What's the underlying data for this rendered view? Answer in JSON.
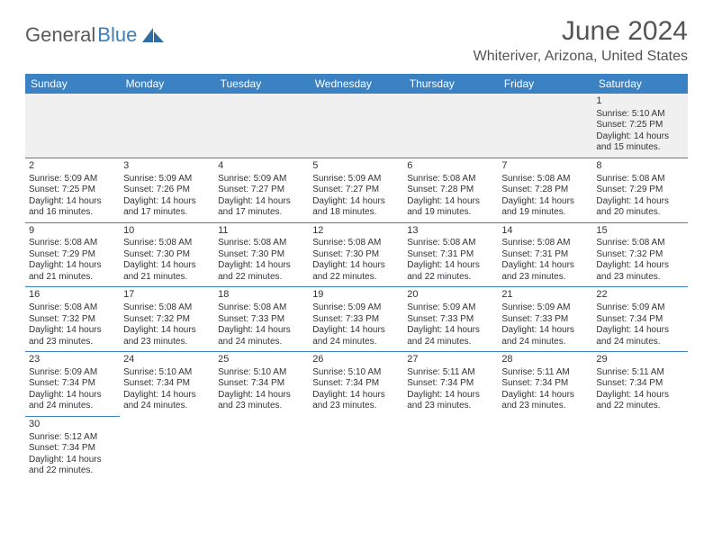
{
  "logo": {
    "part1": "General",
    "part2": "Blue"
  },
  "header": {
    "title": "June 2024",
    "location": "Whiteriver, Arizona, United States"
  },
  "style": {
    "header_bg": "#3b82c4",
    "header_text": "#ffffff",
    "cell_border": "#3b82c4",
    "blank_bg": "#f0f0f0",
    "text_color": "#333333",
    "logo_gray": "#5a5a5a",
    "logo_blue": "#3b7fb8"
  },
  "daynames": [
    "Sunday",
    "Monday",
    "Tuesday",
    "Wednesday",
    "Thursday",
    "Friday",
    "Saturday"
  ],
  "weeks": [
    [
      {
        "blank": true
      },
      {
        "blank": true
      },
      {
        "blank": true
      },
      {
        "blank": true
      },
      {
        "blank": true
      },
      {
        "blank": true
      },
      {
        "day": 1,
        "sunrise": "5:10 AM",
        "sunset": "7:25 PM",
        "dayl1": "Daylight: 14 hours",
        "dayl2": "and 15 minutes."
      }
    ],
    [
      {
        "day": 2,
        "sunrise": "5:09 AM",
        "sunset": "7:25 PM",
        "dayl1": "Daylight: 14 hours",
        "dayl2": "and 16 minutes."
      },
      {
        "day": 3,
        "sunrise": "5:09 AM",
        "sunset": "7:26 PM",
        "dayl1": "Daylight: 14 hours",
        "dayl2": "and 17 minutes."
      },
      {
        "day": 4,
        "sunrise": "5:09 AM",
        "sunset": "7:27 PM",
        "dayl1": "Daylight: 14 hours",
        "dayl2": "and 17 minutes."
      },
      {
        "day": 5,
        "sunrise": "5:09 AM",
        "sunset": "7:27 PM",
        "dayl1": "Daylight: 14 hours",
        "dayl2": "and 18 minutes."
      },
      {
        "day": 6,
        "sunrise": "5:08 AM",
        "sunset": "7:28 PM",
        "dayl1": "Daylight: 14 hours",
        "dayl2": "and 19 minutes."
      },
      {
        "day": 7,
        "sunrise": "5:08 AM",
        "sunset": "7:28 PM",
        "dayl1": "Daylight: 14 hours",
        "dayl2": "and 19 minutes."
      },
      {
        "day": 8,
        "sunrise": "5:08 AM",
        "sunset": "7:29 PM",
        "dayl1": "Daylight: 14 hours",
        "dayl2": "and 20 minutes."
      }
    ],
    [
      {
        "day": 9,
        "sunrise": "5:08 AM",
        "sunset": "7:29 PM",
        "dayl1": "Daylight: 14 hours",
        "dayl2": "and 21 minutes."
      },
      {
        "day": 10,
        "sunrise": "5:08 AM",
        "sunset": "7:30 PM",
        "dayl1": "Daylight: 14 hours",
        "dayl2": "and 21 minutes."
      },
      {
        "day": 11,
        "sunrise": "5:08 AM",
        "sunset": "7:30 PM",
        "dayl1": "Daylight: 14 hours",
        "dayl2": "and 22 minutes."
      },
      {
        "day": 12,
        "sunrise": "5:08 AM",
        "sunset": "7:30 PM",
        "dayl1": "Daylight: 14 hours",
        "dayl2": "and 22 minutes."
      },
      {
        "day": 13,
        "sunrise": "5:08 AM",
        "sunset": "7:31 PM",
        "dayl1": "Daylight: 14 hours",
        "dayl2": "and 22 minutes."
      },
      {
        "day": 14,
        "sunrise": "5:08 AM",
        "sunset": "7:31 PM",
        "dayl1": "Daylight: 14 hours",
        "dayl2": "and 23 minutes."
      },
      {
        "day": 15,
        "sunrise": "5:08 AM",
        "sunset": "7:32 PM",
        "dayl1": "Daylight: 14 hours",
        "dayl2": "and 23 minutes."
      }
    ],
    [
      {
        "day": 16,
        "sunrise": "5:08 AM",
        "sunset": "7:32 PM",
        "dayl1": "Daylight: 14 hours",
        "dayl2": "and 23 minutes."
      },
      {
        "day": 17,
        "sunrise": "5:08 AM",
        "sunset": "7:32 PM",
        "dayl1": "Daylight: 14 hours",
        "dayl2": "and 23 minutes."
      },
      {
        "day": 18,
        "sunrise": "5:08 AM",
        "sunset": "7:33 PM",
        "dayl1": "Daylight: 14 hours",
        "dayl2": "and 24 minutes."
      },
      {
        "day": 19,
        "sunrise": "5:09 AM",
        "sunset": "7:33 PM",
        "dayl1": "Daylight: 14 hours",
        "dayl2": "and 24 minutes."
      },
      {
        "day": 20,
        "sunrise": "5:09 AM",
        "sunset": "7:33 PM",
        "dayl1": "Daylight: 14 hours",
        "dayl2": "and 24 minutes."
      },
      {
        "day": 21,
        "sunrise": "5:09 AM",
        "sunset": "7:33 PM",
        "dayl1": "Daylight: 14 hours",
        "dayl2": "and 24 minutes."
      },
      {
        "day": 22,
        "sunrise": "5:09 AM",
        "sunset": "7:34 PM",
        "dayl1": "Daylight: 14 hours",
        "dayl2": "and 24 minutes."
      }
    ],
    [
      {
        "day": 23,
        "sunrise": "5:09 AM",
        "sunset": "7:34 PM",
        "dayl1": "Daylight: 14 hours",
        "dayl2": "and 24 minutes."
      },
      {
        "day": 24,
        "sunrise": "5:10 AM",
        "sunset": "7:34 PM",
        "dayl1": "Daylight: 14 hours",
        "dayl2": "and 24 minutes."
      },
      {
        "day": 25,
        "sunrise": "5:10 AM",
        "sunset": "7:34 PM",
        "dayl1": "Daylight: 14 hours",
        "dayl2": "and 23 minutes."
      },
      {
        "day": 26,
        "sunrise": "5:10 AM",
        "sunset": "7:34 PM",
        "dayl1": "Daylight: 14 hours",
        "dayl2": "and 23 minutes."
      },
      {
        "day": 27,
        "sunrise": "5:11 AM",
        "sunset": "7:34 PM",
        "dayl1": "Daylight: 14 hours",
        "dayl2": "and 23 minutes."
      },
      {
        "day": 28,
        "sunrise": "5:11 AM",
        "sunset": "7:34 PM",
        "dayl1": "Daylight: 14 hours",
        "dayl2": "and 23 minutes."
      },
      {
        "day": 29,
        "sunrise": "5:11 AM",
        "sunset": "7:34 PM",
        "dayl1": "Daylight: 14 hours",
        "dayl2": "and 22 minutes."
      }
    ],
    [
      {
        "day": 30,
        "sunrise": "5:12 AM",
        "sunset": "7:34 PM",
        "dayl1": "Daylight: 14 hours",
        "dayl2": "and 22 minutes."
      },
      {
        "blank": true
      },
      {
        "blank": true
      },
      {
        "blank": true
      },
      {
        "blank": true
      },
      {
        "blank": true
      },
      {
        "blank": true
      }
    ]
  ],
  "labels": {
    "sunrise_prefix": "Sunrise: ",
    "sunset_prefix": "Sunset: "
  }
}
